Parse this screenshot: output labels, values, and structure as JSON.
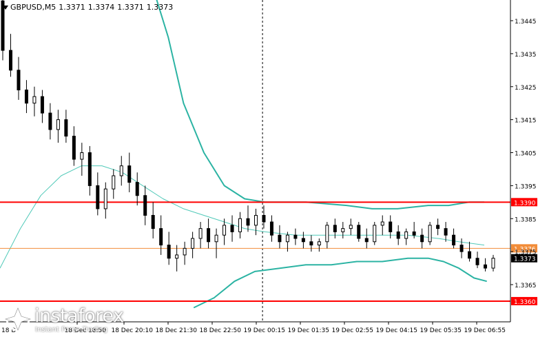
{
  "header": {
    "symbol": "GBPUSD,M5",
    "open": "1.3371",
    "high": "1.3374",
    "low": "1.3371",
    "close": "1.3373"
  },
  "colors": {
    "candle": "#000000",
    "band": "#2bb3a3",
    "ma": "#4fc9b8",
    "level_red": "#ff0000",
    "level_orange": "#f28c38",
    "price_label_bg": "#000000",
    "level_label_bg": "#ff0000",
    "orange_label_bg": "#f28c38"
  },
  "watermark": {
    "brand": "instaforex",
    "tagline": "Instant Forex Trading",
    "icon": "instaforex-logo-icon"
  },
  "chart_data": {
    "type": "candlestick",
    "symbol": "GBPUSD",
    "timeframe": "M5",
    "ylim": [
      1.3358,
      1.3455
    ],
    "y_ticks": [
      "1.3445",
      "1.3435",
      "1.3425",
      "1.3415",
      "1.3405",
      "1.3395",
      "1.3385",
      "1.3375",
      "1.3365"
    ],
    "x_ticks": [
      "18 Dec 18:50",
      "18 Dec 20:10",
      "18 Dec 21:30",
      "18 Dec 22:50",
      "19 Dec 00:15",
      "19 Dec 01:35",
      "19 Dec 02:55",
      "19 Dec 04:15",
      "19 Dec 05:35",
      "19 Dec 06:55"
    ],
    "x_tick_first_partial": "18 D",
    "levels": [
      {
        "value": 1.339,
        "label": "1.3390",
        "style": "red"
      },
      {
        "value": 1.3376,
        "label": "1.3376",
        "style": "orange"
      },
      {
        "value": 1.336,
        "label": "1.3360",
        "style": "red"
      }
    ],
    "current_price": {
      "value": 1.3373,
      "label": "1.3373"
    },
    "candles": [
      [
        1.3451,
        1.3452,
        1.3433,
        1.3436
      ],
      [
        1.3436,
        1.3441,
        1.3428,
        1.343
      ],
      [
        1.343,
        1.3434,
        1.3421,
        1.3424
      ],
      [
        1.3424,
        1.3427,
        1.3417,
        1.342
      ],
      [
        1.342,
        1.3425,
        1.3416,
        1.3422
      ],
      [
        1.3422,
        1.3424,
        1.3414,
        1.3417
      ],
      [
        1.3417,
        1.342,
        1.3409,
        1.3412
      ],
      [
        1.3412,
        1.3418,
        1.3408,
        1.3415
      ],
      [
        1.3415,
        1.3418,
        1.3408,
        1.341
      ],
      [
        1.341,
        1.3413,
        1.3401,
        1.3403
      ],
      [
        1.3403,
        1.3408,
        1.3398,
        1.3405
      ],
      [
        1.3405,
        1.3407,
        1.3392,
        1.3395
      ],
      [
        1.3395,
        1.3399,
        1.3386,
        1.3388
      ],
      [
        1.3388,
        1.3396,
        1.3385,
        1.3394
      ],
      [
        1.3394,
        1.34,
        1.3391,
        1.3398
      ],
      [
        1.3398,
        1.3404,
        1.3395,
        1.3401
      ],
      [
        1.3401,
        1.3405,
        1.3393,
        1.3396
      ],
      [
        1.3396,
        1.3399,
        1.3389,
        1.3392
      ],
      [
        1.3392,
        1.3395,
        1.3383,
        1.3386
      ],
      [
        1.3386,
        1.339,
        1.3379,
        1.3382
      ],
      [
        1.3382,
        1.3386,
        1.3374,
        1.3377
      ],
      [
        1.3377,
        1.3381,
        1.3371,
        1.3373
      ],
      [
        1.3373,
        1.3377,
        1.3369,
        1.3374
      ],
      [
        1.3374,
        1.3378,
        1.3371,
        1.3376
      ],
      [
        1.3376,
        1.3381,
        1.3373,
        1.3379
      ],
      [
        1.3379,
        1.3384,
        1.3376,
        1.3382
      ],
      [
        1.3382,
        1.3385,
        1.3376,
        1.3378
      ],
      [
        1.3378,
        1.3382,
        1.3373,
        1.338
      ],
      [
        1.338,
        1.3385,
        1.3377,
        1.3383
      ],
      [
        1.3383,
        1.3386,
        1.3378,
        1.3381
      ],
      [
        1.3381,
        1.3387,
        1.3379,
        1.3385
      ],
      [
        1.3385,
        1.3389,
        1.3381,
        1.3383
      ],
      [
        1.3383,
        1.3388,
        1.338,
        1.3386
      ],
      [
        1.3386,
        1.3389,
        1.3382,
        1.3384
      ],
      [
        1.3384,
        1.3386,
        1.3378,
        1.338
      ],
      [
        1.338,
        1.3383,
        1.3376,
        1.3378
      ],
      [
        1.3378,
        1.3381,
        1.3375,
        1.338
      ],
      [
        1.338,
        1.3382,
        1.3377,
        1.3379
      ],
      [
        1.3379,
        1.3381,
        1.3376,
        1.3378
      ],
      [
        1.3378,
        1.338,
        1.3375,
        1.3377
      ],
      [
        1.3377,
        1.3379,
        1.3375,
        1.3378
      ],
      [
        1.3378,
        1.3384,
        1.3376,
        1.3383
      ],
      [
        1.3383,
        1.3385,
        1.3379,
        1.3381
      ],
      [
        1.3381,
        1.3384,
        1.3379,
        1.3382
      ],
      [
        1.3382,
        1.3385,
        1.338,
        1.3383
      ],
      [
        1.3383,
        1.3384,
        1.3378,
        1.3379
      ],
      [
        1.3379,
        1.3382,
        1.3376,
        1.3378
      ],
      [
        1.3378,
        1.3384,
        1.3377,
        1.3383
      ],
      [
        1.3383,
        1.3386,
        1.338,
        1.3384
      ],
      [
        1.3384,
        1.3386,
        1.3379,
        1.3381
      ],
      [
        1.3381,
        1.3383,
        1.3377,
        1.3379
      ],
      [
        1.3379,
        1.3382,
        1.3377,
        1.3381
      ],
      [
        1.3381,
        1.3384,
        1.3379,
        1.338
      ],
      [
        1.338,
        1.3382,
        1.3376,
        1.3378
      ],
      [
        1.3378,
        1.3384,
        1.3377,
        1.3383
      ],
      [
        1.3383,
        1.3385,
        1.338,
        1.3382
      ],
      [
        1.3382,
        1.3384,
        1.3378,
        1.338
      ],
      [
        1.338,
        1.3382,
        1.3376,
        1.3377
      ],
      [
        1.3377,
        1.3379,
        1.3373,
        1.3375
      ],
      [
        1.3375,
        1.3378,
        1.3372,
        1.3373
      ],
      [
        1.3373,
        1.3375,
        1.337,
        1.3371
      ],
      [
        1.3371,
        1.3373,
        1.3369,
        1.337
      ],
      [
        1.337,
        1.3374,
        1.3369,
        1.3373
      ]
    ],
    "band_upper": [
      [
        0.3,
        1.3455
      ],
      [
        0.33,
        1.344
      ],
      [
        0.36,
        1.342
      ],
      [
        0.4,
        1.3405
      ],
      [
        0.44,
        1.3395
      ],
      [
        0.48,
        1.3391
      ],
      [
        0.52,
        1.339
      ],
      [
        0.6,
        1.339
      ],
      [
        0.68,
        1.3389
      ],
      [
        0.73,
        1.3388
      ],
      [
        0.78,
        1.3388
      ],
      [
        0.84,
        1.3389
      ],
      [
        0.88,
        1.3389
      ],
      [
        0.92,
        1.339
      ],
      [
        0.95,
        1.339
      ]
    ],
    "band_lower": [
      [
        0.38,
        1.3358
      ],
      [
        0.42,
        1.3361
      ],
      [
        0.46,
        1.3366
      ],
      [
        0.5,
        1.3369
      ],
      [
        0.55,
        1.337
      ],
      [
        0.6,
        1.3371
      ],
      [
        0.65,
        1.3371
      ],
      [
        0.7,
        1.3372
      ],
      [
        0.75,
        1.3372
      ],
      [
        0.8,
        1.3373
      ],
      [
        0.84,
        1.3373
      ],
      [
        0.87,
        1.3372
      ],
      [
        0.9,
        1.337
      ],
      [
        0.93,
        1.3367
      ],
      [
        0.955,
        1.3366
      ]
    ],
    "ma_line": [
      [
        0.0,
        1.337
      ],
      [
        0.04,
        1.3382
      ],
      [
        0.08,
        1.3392
      ],
      [
        0.12,
        1.3398
      ],
      [
        0.16,
        1.3401
      ],
      [
        0.2,
        1.3401
      ],
      [
        0.24,
        1.3399
      ],
      [
        0.28,
        1.3395
      ],
      [
        0.32,
        1.3391
      ],
      [
        0.36,
        1.3388
      ],
      [
        0.4,
        1.3386
      ],
      [
        0.44,
        1.3384
      ],
      [
        0.48,
        1.3382
      ],
      [
        0.52,
        1.3381
      ],
      [
        0.58,
        1.338
      ],
      [
        0.66,
        1.338
      ],
      [
        0.74,
        1.338
      ],
      [
        0.8,
        1.338
      ],
      [
        0.86,
        1.3379
      ],
      [
        0.9,
        1.3378
      ],
      [
        0.95,
        1.3377
      ]
    ],
    "vertical_marker_fraction": 0.515
  }
}
